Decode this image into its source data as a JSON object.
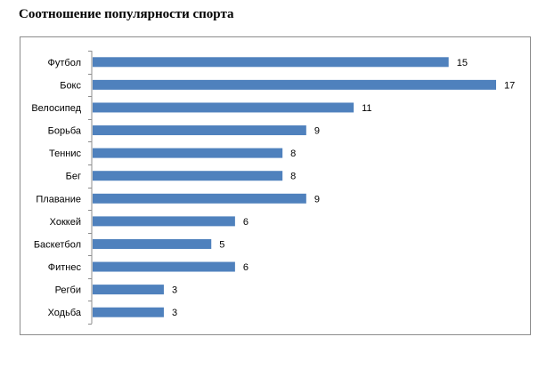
{
  "chart_data": {
    "type": "bar",
    "orientation": "horizontal",
    "title": "Соотношение популярности спорта",
    "categories": [
      "Футбол",
      "Бокс",
      "Велосипед",
      "Борьба",
      "Теннис",
      "Бег",
      "Плавание",
      "Хоккей",
      "Баскетбол",
      "Фитнес",
      "Регби",
      "Ходьба"
    ],
    "values": [
      15,
      17,
      11,
      9,
      8,
      8,
      9,
      6,
      5,
      6,
      3,
      3
    ],
    "xlim": [
      0,
      17
    ],
    "grid": false,
    "legend": "none",
    "data_labels": true,
    "bar_color": "#4f81bd"
  }
}
